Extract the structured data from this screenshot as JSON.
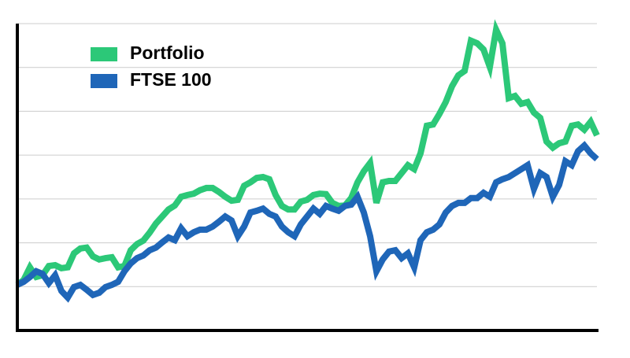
{
  "chart_data": {
    "type": "line",
    "x": [
      0,
      1,
      2,
      3,
      4,
      5,
      6,
      7,
      8,
      9,
      10,
      11,
      12,
      13,
      14,
      15,
      16,
      17,
      18,
      19,
      20,
      21,
      22,
      23,
      24,
      25,
      26,
      27,
      28,
      29,
      30,
      31,
      32,
      33,
      34,
      35,
      36,
      37,
      38,
      39,
      40,
      41,
      42,
      43,
      44,
      45,
      46,
      47,
      48,
      49,
      50,
      51,
      52,
      53,
      54,
      55,
      56,
      57,
      58,
      59,
      60,
      61,
      62,
      63,
      64,
      65,
      66,
      67,
      68,
      69,
      70,
      71,
      72,
      73,
      74,
      75,
      76,
      77,
      78,
      79,
      80,
      81,
      82,
      83,
      84,
      85,
      86,
      87,
      88,
      89,
      90,
      91,
      92
    ],
    "xlim": [
      0,
      92
    ],
    "ylim": [
      0,
      7
    ],
    "yticks": [
      1,
      2,
      3,
      4,
      5,
      6,
      7
    ],
    "grid": true,
    "legend": "upper left",
    "series": [
      {
        "name": "Portfolio",
        "color": "#2cc878",
        "values": [
          1.04,
          1.15,
          1.44,
          1.22,
          1.26,
          1.47,
          1.49,
          1.42,
          1.44,
          1.76,
          1.87,
          1.89,
          1.69,
          1.62,
          1.65,
          1.67,
          1.44,
          1.47,
          1.83,
          1.97,
          2.05,
          2.23,
          2.44,
          2.6,
          2.76,
          2.85,
          3.05,
          3.09,
          3.12,
          3.2,
          3.25,
          3.25,
          3.16,
          3.05,
          2.96,
          2.98,
          3.3,
          3.38,
          3.48,
          3.5,
          3.45,
          3.09,
          2.84,
          2.76,
          2.76,
          2.94,
          2.98,
          3.09,
          3.12,
          3.11,
          2.91,
          2.84,
          2.85,
          3.02,
          3.38,
          3.63,
          3.82,
          2.91,
          3.38,
          3.41,
          3.41,
          3.59,
          3.77,
          3.68,
          4.04,
          4.67,
          4.7,
          4.94,
          5.21,
          5.57,
          5.82,
          5.92,
          6.61,
          6.55,
          6.41,
          6.01,
          6.86,
          6.55,
          5.3,
          5.35,
          5.17,
          5.21,
          4.97,
          4.85,
          4.31,
          4.17,
          4.27,
          4.31,
          4.67,
          4.7,
          4.58,
          4.76,
          4.45
        ]
      },
      {
        "name": "FTSE 100",
        "color": "#1f66b8",
        "values": [
          1.04,
          1.11,
          1.22,
          1.35,
          1.29,
          1.08,
          1.26,
          0.9,
          0.75,
          0.99,
          1.04,
          0.93,
          0.81,
          0.86,
          0.99,
          1.04,
          1.11,
          1.35,
          1.53,
          1.65,
          1.71,
          1.83,
          1.89,
          2.01,
          2.12,
          2.06,
          2.33,
          2.15,
          2.24,
          2.3,
          2.3,
          2.37,
          2.48,
          2.6,
          2.51,
          2.15,
          2.37,
          2.69,
          2.73,
          2.78,
          2.66,
          2.6,
          2.37,
          2.24,
          2.15,
          2.42,
          2.6,
          2.78,
          2.66,
          2.84,
          2.78,
          2.73,
          2.84,
          2.87,
          3.05,
          2.69,
          2.15,
          1.35,
          1.62,
          1.8,
          1.83,
          1.65,
          1.76,
          1.44,
          2.06,
          2.24,
          2.3,
          2.42,
          2.69,
          2.84,
          2.91,
          2.91,
          3.02,
          3.02,
          3.14,
          3.05,
          3.38,
          3.45,
          3.5,
          3.59,
          3.68,
          3.77,
          3.23,
          3.59,
          3.5,
          3.05,
          3.32,
          3.86,
          3.77,
          4.09,
          4.22,
          4.04,
          3.91
        ]
      }
    ]
  }
}
